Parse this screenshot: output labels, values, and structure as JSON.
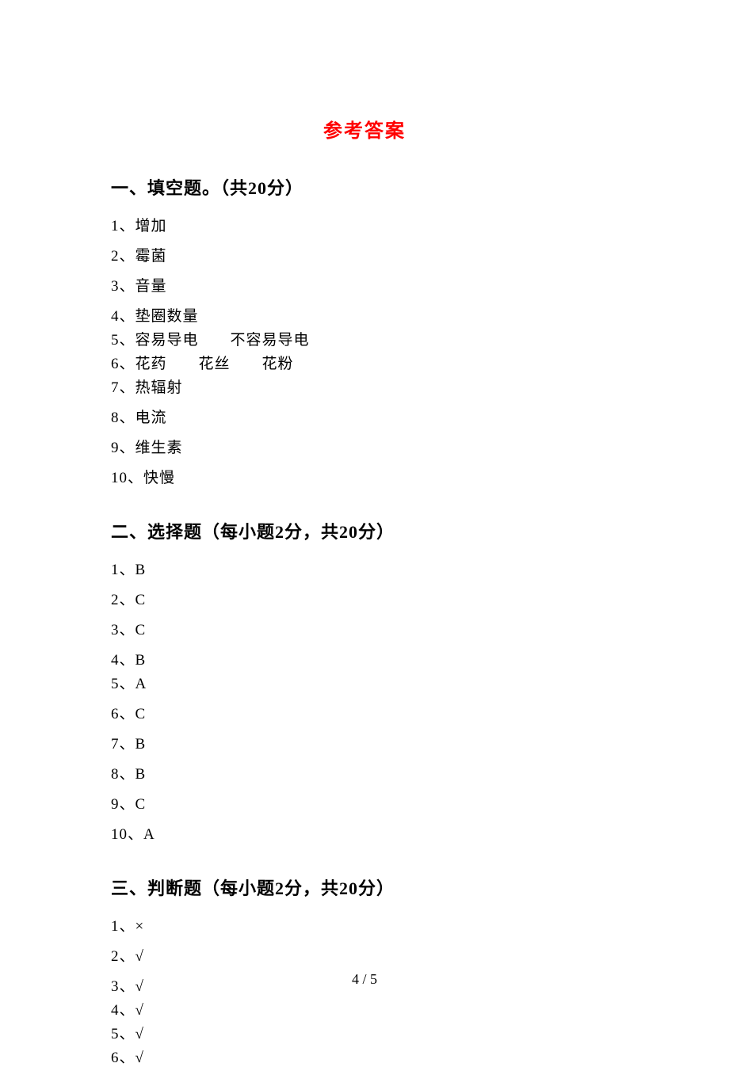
{
  "title": "参考答案",
  "sections": [
    {
      "heading": "一、填空题。（共20分）",
      "items": [
        {
          "num": "1",
          "text": "增加",
          "tight": false
        },
        {
          "num": "2",
          "text": "霉菌",
          "tight": false
        },
        {
          "num": "3",
          "text": "音量",
          "tight": false
        },
        {
          "num": "4",
          "text": "垫圈数量",
          "tight": true
        },
        {
          "num": "5",
          "text": "容易导电　　不容易导电",
          "tight": true
        },
        {
          "num": "6",
          "text": "花药　　花丝　　花粉",
          "tight": true
        },
        {
          "num": "7",
          "text": "热辐射",
          "tight": false
        },
        {
          "num": "8",
          "text": "电流",
          "tight": false
        },
        {
          "num": "9",
          "text": "维生素",
          "tight": false
        },
        {
          "num": "10",
          "text": "快慢",
          "tight": false
        }
      ]
    },
    {
      "heading": "二、选择题（每小题2分，共20分）",
      "items": [
        {
          "num": "1",
          "text": "B",
          "tight": false
        },
        {
          "num": "2",
          "text": "C",
          "tight": false
        },
        {
          "num": "3",
          "text": "C",
          "tight": false
        },
        {
          "num": "4",
          "text": "B",
          "tight": true
        },
        {
          "num": "5",
          "text": "A",
          "tight": false
        },
        {
          "num": "6",
          "text": "C",
          "tight": false
        },
        {
          "num": "7",
          "text": "B",
          "tight": false
        },
        {
          "num": "8",
          "text": "B",
          "tight": false
        },
        {
          "num": "9",
          "text": "C",
          "tight": false
        },
        {
          "num": "10",
          "text": "A",
          "tight": false
        }
      ]
    },
    {
      "heading": "三、判断题（每小题2分，共20分）",
      "items": [
        {
          "num": "1",
          "text": "×",
          "tight": false
        },
        {
          "num": "2",
          "text": "√",
          "tight": false
        },
        {
          "num": "3",
          "text": "√",
          "tight": true
        },
        {
          "num": "4",
          "text": "√",
          "tight": true
        },
        {
          "num": "5",
          "text": "√",
          "tight": true
        },
        {
          "num": "6",
          "text": "√",
          "tight": false
        }
      ]
    }
  ],
  "pageNumber": "4 / 5",
  "colors": {
    "title": "#ff0000",
    "text": "#000000",
    "background": "#ffffff"
  },
  "typography": {
    "title_fontsize": 24,
    "heading_fontsize": 22,
    "body_fontsize": 19,
    "footer_fontsize": 18
  }
}
